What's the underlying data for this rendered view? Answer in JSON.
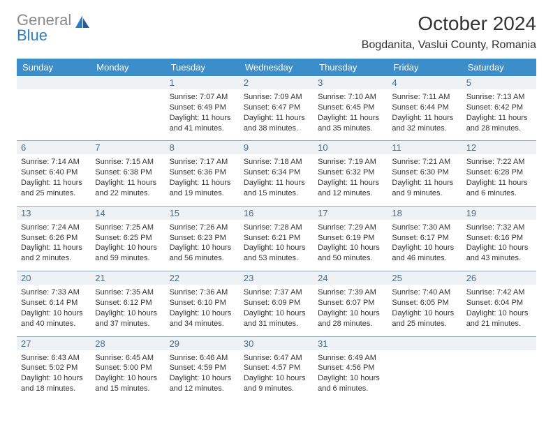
{
  "brand": {
    "part1": "General",
    "part2": "Blue"
  },
  "title": "October 2024",
  "location": "Bogdanita, Vaslui County, Romania",
  "day_headers": [
    "Sunday",
    "Monday",
    "Tuesday",
    "Wednesday",
    "Thursday",
    "Friday",
    "Saturday"
  ],
  "header_bg": "#3c8ecb",
  "header_fg": "#ffffff",
  "daynum_bg": "#eef2f5",
  "daynum_fg": "#4c6b88",
  "row_border": "#8fa5b8",
  "weeks": [
    [
      {
        "n": "",
        "lines": []
      },
      {
        "n": "",
        "lines": []
      },
      {
        "n": "1",
        "lines": [
          "Sunrise: 7:07 AM",
          "Sunset: 6:49 PM",
          "Daylight: 11 hours and 41 minutes."
        ]
      },
      {
        "n": "2",
        "lines": [
          "Sunrise: 7:09 AM",
          "Sunset: 6:47 PM",
          "Daylight: 11 hours and 38 minutes."
        ]
      },
      {
        "n": "3",
        "lines": [
          "Sunrise: 7:10 AM",
          "Sunset: 6:45 PM",
          "Daylight: 11 hours and 35 minutes."
        ]
      },
      {
        "n": "4",
        "lines": [
          "Sunrise: 7:11 AM",
          "Sunset: 6:44 PM",
          "Daylight: 11 hours and 32 minutes."
        ]
      },
      {
        "n": "5",
        "lines": [
          "Sunrise: 7:13 AM",
          "Sunset: 6:42 PM",
          "Daylight: 11 hours and 28 minutes."
        ]
      }
    ],
    [
      {
        "n": "6",
        "lines": [
          "Sunrise: 7:14 AM",
          "Sunset: 6:40 PM",
          "Daylight: 11 hours and 25 minutes."
        ]
      },
      {
        "n": "7",
        "lines": [
          "Sunrise: 7:15 AM",
          "Sunset: 6:38 PM",
          "Daylight: 11 hours and 22 minutes."
        ]
      },
      {
        "n": "8",
        "lines": [
          "Sunrise: 7:17 AM",
          "Sunset: 6:36 PM",
          "Daylight: 11 hours and 19 minutes."
        ]
      },
      {
        "n": "9",
        "lines": [
          "Sunrise: 7:18 AM",
          "Sunset: 6:34 PM",
          "Daylight: 11 hours and 15 minutes."
        ]
      },
      {
        "n": "10",
        "lines": [
          "Sunrise: 7:19 AM",
          "Sunset: 6:32 PM",
          "Daylight: 11 hours and 12 minutes."
        ]
      },
      {
        "n": "11",
        "lines": [
          "Sunrise: 7:21 AM",
          "Sunset: 6:30 PM",
          "Daylight: 11 hours and 9 minutes."
        ]
      },
      {
        "n": "12",
        "lines": [
          "Sunrise: 7:22 AM",
          "Sunset: 6:28 PM",
          "Daylight: 11 hours and 6 minutes."
        ]
      }
    ],
    [
      {
        "n": "13",
        "lines": [
          "Sunrise: 7:24 AM",
          "Sunset: 6:26 PM",
          "Daylight: 11 hours and 2 minutes."
        ]
      },
      {
        "n": "14",
        "lines": [
          "Sunrise: 7:25 AM",
          "Sunset: 6:25 PM",
          "Daylight: 10 hours and 59 minutes."
        ]
      },
      {
        "n": "15",
        "lines": [
          "Sunrise: 7:26 AM",
          "Sunset: 6:23 PM",
          "Daylight: 10 hours and 56 minutes."
        ]
      },
      {
        "n": "16",
        "lines": [
          "Sunrise: 7:28 AM",
          "Sunset: 6:21 PM",
          "Daylight: 10 hours and 53 minutes."
        ]
      },
      {
        "n": "17",
        "lines": [
          "Sunrise: 7:29 AM",
          "Sunset: 6:19 PM",
          "Daylight: 10 hours and 50 minutes."
        ]
      },
      {
        "n": "18",
        "lines": [
          "Sunrise: 7:30 AM",
          "Sunset: 6:17 PM",
          "Daylight: 10 hours and 46 minutes."
        ]
      },
      {
        "n": "19",
        "lines": [
          "Sunrise: 7:32 AM",
          "Sunset: 6:16 PM",
          "Daylight: 10 hours and 43 minutes."
        ]
      }
    ],
    [
      {
        "n": "20",
        "lines": [
          "Sunrise: 7:33 AM",
          "Sunset: 6:14 PM",
          "Daylight: 10 hours and 40 minutes."
        ]
      },
      {
        "n": "21",
        "lines": [
          "Sunrise: 7:35 AM",
          "Sunset: 6:12 PM",
          "Daylight: 10 hours and 37 minutes."
        ]
      },
      {
        "n": "22",
        "lines": [
          "Sunrise: 7:36 AM",
          "Sunset: 6:10 PM",
          "Daylight: 10 hours and 34 minutes."
        ]
      },
      {
        "n": "23",
        "lines": [
          "Sunrise: 7:37 AM",
          "Sunset: 6:09 PM",
          "Daylight: 10 hours and 31 minutes."
        ]
      },
      {
        "n": "24",
        "lines": [
          "Sunrise: 7:39 AM",
          "Sunset: 6:07 PM",
          "Daylight: 10 hours and 28 minutes."
        ]
      },
      {
        "n": "25",
        "lines": [
          "Sunrise: 7:40 AM",
          "Sunset: 6:05 PM",
          "Daylight: 10 hours and 25 minutes."
        ]
      },
      {
        "n": "26",
        "lines": [
          "Sunrise: 7:42 AM",
          "Sunset: 6:04 PM",
          "Daylight: 10 hours and 21 minutes."
        ]
      }
    ],
    [
      {
        "n": "27",
        "lines": [
          "Sunrise: 6:43 AM",
          "Sunset: 5:02 PM",
          "Daylight: 10 hours and 18 minutes."
        ]
      },
      {
        "n": "28",
        "lines": [
          "Sunrise: 6:45 AM",
          "Sunset: 5:00 PM",
          "Daylight: 10 hours and 15 minutes."
        ]
      },
      {
        "n": "29",
        "lines": [
          "Sunrise: 6:46 AM",
          "Sunset: 4:59 PM",
          "Daylight: 10 hours and 12 minutes."
        ]
      },
      {
        "n": "30",
        "lines": [
          "Sunrise: 6:47 AM",
          "Sunset: 4:57 PM",
          "Daylight: 10 hours and 9 minutes."
        ]
      },
      {
        "n": "31",
        "lines": [
          "Sunrise: 6:49 AM",
          "Sunset: 4:56 PM",
          "Daylight: 10 hours and 6 minutes."
        ]
      },
      {
        "n": "",
        "lines": []
      },
      {
        "n": "",
        "lines": []
      }
    ]
  ]
}
